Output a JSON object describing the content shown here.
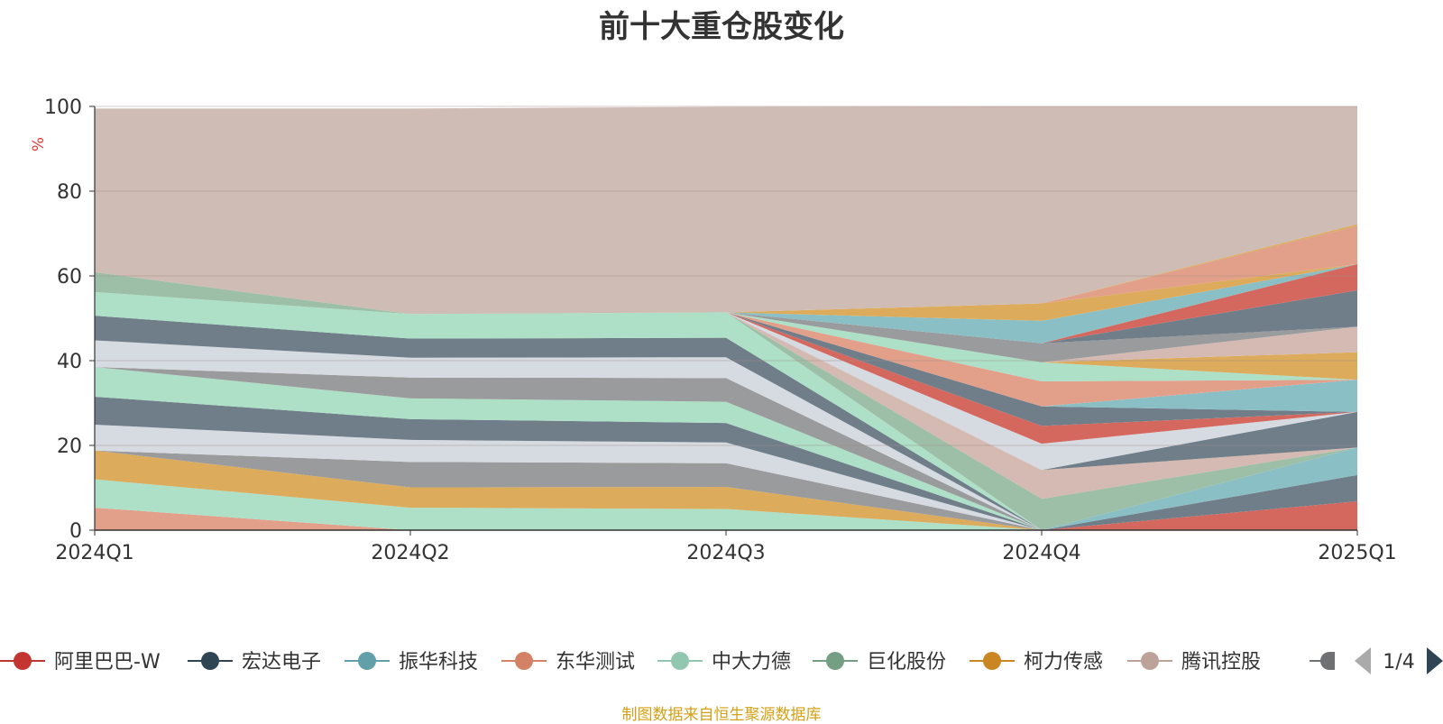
{
  "title": "前十大重仓股变化",
  "source_note": "制图数据来自恒生聚源数据库",
  "legend": {
    "page_indicator": "1/4",
    "items": [
      {
        "label": "阿里巴巴-W",
        "color": "#c23531"
      },
      {
        "label": "宏达电子",
        "color": "#2f4554"
      },
      {
        "label": "振华科技",
        "color": "#61a0a8"
      },
      {
        "label": "东华测试",
        "color": "#d48265"
      },
      {
        "label": "中大力德",
        "color": "#91c7ae"
      },
      {
        "label": "巨化股份",
        "color": "#749f83"
      },
      {
        "label": "柯力传感",
        "color": "#ca8622"
      },
      {
        "label": "腾讯控股",
        "color": "#bda29a"
      }
    ],
    "partial_item_color": "#6e7074"
  },
  "chart_data": {
    "type": "area",
    "stacked": true,
    "title": "前十大重仓股变化",
    "ylabel": "%",
    "ylim": [
      0,
      100
    ],
    "yticks": [
      0,
      20,
      40,
      60,
      80,
      100
    ],
    "categories": [
      "2024Q1",
      "2024Q2",
      "2024Q3",
      "2024Q4",
      "2025Q1"
    ],
    "grid": true,
    "legend_position": "bottom",
    "series": [
      {
        "name": "",
        "color": "#e2a08b",
        "values": [
          5.3,
          0,
          0,
          0,
          0
        ]
      },
      {
        "name": "",
        "color": "#ade0c7",
        "values": [
          6.7,
          5.3,
          5.0,
          0,
          0
        ]
      },
      {
        "name": "",
        "color": "#dcab5c",
        "values": [
          6.8,
          4.8,
          5.2,
          0,
          0
        ]
      },
      {
        "name": "",
        "color": "#9a9b9c",
        "values": [
          0,
          6.0,
          5.6,
          0,
          0
        ]
      },
      {
        "name": "",
        "color": "#d6dbe2",
        "values": [
          6.1,
          5.2,
          4.9,
          0,
          0
        ]
      },
      {
        "name": "",
        "color": "#707e8a",
        "values": [
          6.6,
          4.9,
          4.6,
          0,
          0
        ]
      },
      {
        "name": "",
        "color": "#ade0c7",
        "values": [
          7.0,
          4.9,
          5.0,
          0,
          0
        ]
      },
      {
        "name": "",
        "color": "#9a9b9c",
        "values": [
          0,
          4.9,
          5.6,
          0,
          0
        ]
      },
      {
        "name": "",
        "color": "#d6dbe2",
        "values": [
          6.3,
          4.7,
          4.9,
          0,
          0
        ]
      },
      {
        "name": "",
        "color": "#707e8a",
        "values": [
          5.8,
          4.5,
          4.6,
          0,
          0
        ]
      },
      {
        "name": "",
        "color": "#ade0c7",
        "values": [
          5.6,
          5.8,
          6.0,
          0,
          0
        ]
      },
      {
        "name": "",
        "color": "#9dbfa8",
        "values": [
          4.7,
          0,
          0,
          0,
          0
        ]
      },
      {
        "name": "",
        "color": "#d4685f",
        "values": [
          0,
          0,
          0,
          0,
          6.8
        ]
      },
      {
        "name": "",
        "color": "#707e8a",
        "values": [
          0,
          0,
          0,
          0,
          6.2
        ]
      },
      {
        "name": "",
        "color": "#8abfc5",
        "values": [
          0,
          0,
          0,
          0,
          6.5
        ]
      },
      {
        "name": "",
        "color": "#9dbfa8",
        "values": [
          0,
          0,
          0,
          7.4,
          0
        ]
      },
      {
        "name": "",
        "color": "#d4bab2",
        "values": [
          0,
          0,
          0,
          6.8,
          0
        ]
      },
      {
        "name": "",
        "color": "#707e8a",
        "values": [
          0,
          0,
          0,
          0,
          8.4
        ]
      },
      {
        "name": "",
        "color": "#d6dbe2",
        "values": [
          0,
          0,
          0,
          6.2,
          0
        ]
      },
      {
        "name": "",
        "color": "#d4685f",
        "values": [
          0,
          0,
          0,
          4.2,
          0
        ]
      },
      {
        "name": "",
        "color": "#707e8a",
        "values": [
          0,
          0,
          0,
          4.6,
          0
        ]
      },
      {
        "name": "",
        "color": "#8abfc5",
        "values": [
          0,
          0,
          0,
          0,
          7.6
        ]
      },
      {
        "name": "",
        "color": "#e2a08b",
        "values": [
          0,
          0,
          0,
          5.9,
          0
        ]
      },
      {
        "name": "",
        "color": "#ade0c7",
        "values": [
          0,
          0,
          0,
          4.5,
          0
        ]
      },
      {
        "name": "",
        "color": "#dcab5c",
        "values": [
          0,
          0,
          0,
          0,
          6.5
        ]
      },
      {
        "name": "",
        "color": "#d4bab2",
        "values": [
          0,
          0,
          0,
          0,
          6.0
        ]
      },
      {
        "name": "",
        "color": "#9a9b9c",
        "values": [
          0,
          0,
          0,
          4.5,
          0
        ]
      },
      {
        "name": "",
        "color": "#707e8a",
        "values": [
          0,
          0,
          0,
          0,
          8.6
        ]
      },
      {
        "name": "",
        "color": "#d4685f",
        "values": [
          0,
          0,
          0,
          0,
          6.2
        ]
      },
      {
        "name": "",
        "color": "#8abfc5",
        "values": [
          0,
          0,
          0,
          5.3,
          0
        ]
      },
      {
        "name": "",
        "color": "#dcab5c",
        "values": [
          0,
          0,
          0,
          4.1,
          0
        ]
      },
      {
        "name": "",
        "color": "#e2a08b",
        "values": [
          0,
          0,
          0,
          0,
          9.0
        ]
      },
      {
        "name": "",
        "color": "#dcab5c",
        "values": [
          0,
          0,
          0,
          0,
          0.4
        ]
      },
      {
        "name": "",
        "color": "#cfbcb5",
        "values": [
          38.6,
          48.5,
          48.5,
          46.5,
          27.8
        ]
      }
    ]
  }
}
